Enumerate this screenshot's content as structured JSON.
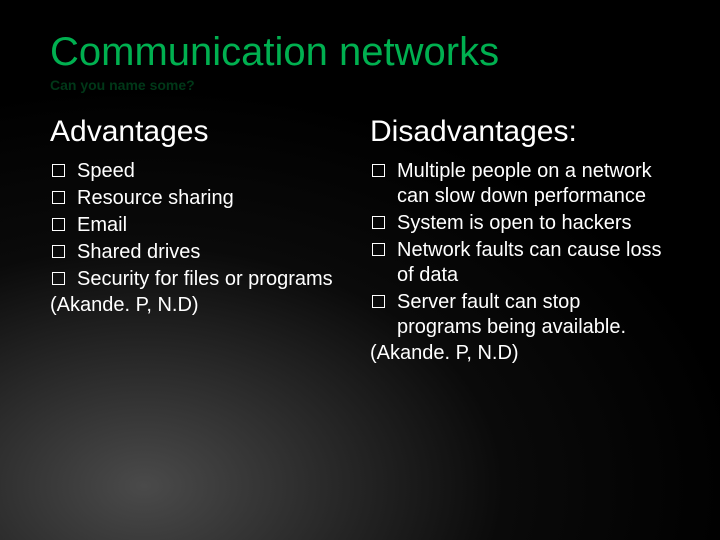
{
  "title": "Communication networks",
  "subtitle": "Can you name some?",
  "title_color": "#00b050",
  "subtitle_color": "#003818",
  "text_color": "#ffffff",
  "bg_gradient_from": "#4a4a4a",
  "bg_gradient_to": "#000000",
  "left": {
    "heading": "Advantages",
    "items": [
      "Speed",
      "Resource sharing",
      "Email",
      "Shared drives",
      "Security for files or programs"
    ],
    "citation": "(Akande. P, N.D)"
  },
  "right": {
    "heading": "Disadvantages:",
    "items": [
      "Multiple people on a network can slow down performance",
      "System is open to hackers",
      "Network faults can cause loss of data",
      "Server fault can stop programs being available."
    ],
    "citation": "(Akande. P, N.D)"
  },
  "title_fontsize": 40,
  "heading_fontsize": 30,
  "body_fontsize": 20
}
